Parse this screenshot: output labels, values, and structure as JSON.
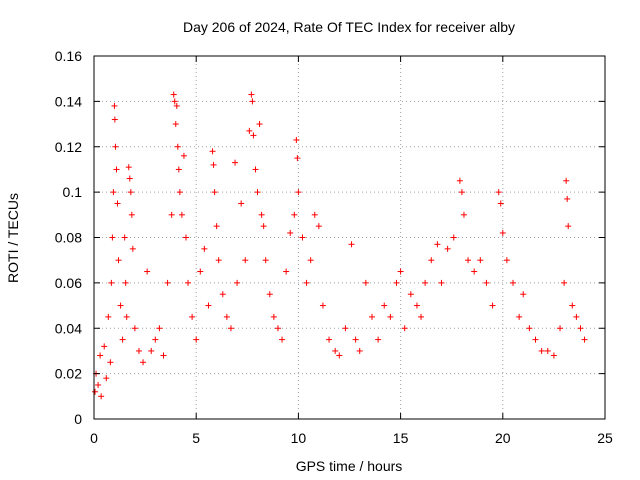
{
  "chart_data": {
    "type": "scatter",
    "title": "Day 206 of 2024, Rate Of TEC Index for receiver alby",
    "xlabel": "GPS time / hours",
    "ylabel": "ROTI / TECUs",
    "xlim": [
      0,
      25
    ],
    "ylim": [
      0,
      0.16
    ],
    "x_ticks": [
      0,
      5,
      10,
      15,
      20,
      25
    ],
    "y_ticks": [
      0,
      0.02,
      0.04,
      0.06,
      0.08,
      0.1,
      0.12,
      0.14,
      0.16
    ],
    "x_tick_labels": [
      "0",
      "5",
      "10",
      "15",
      "20",
      "25"
    ],
    "y_tick_labels": [
      "0",
      "0.02",
      "0.04",
      "0.06",
      "0.08",
      "0.1",
      "0.12",
      "0.14",
      "0.16"
    ],
    "grid": true,
    "marker": "plus",
    "colors": {
      "points": "#ff0000",
      "grid": "#a0a0a0",
      "frame": "#000000"
    },
    "series": [
      {
        "points": [
          [
            0.05,
            0.012
          ],
          [
            0.1,
            0.02
          ],
          [
            0.2,
            0.015
          ],
          [
            0.3,
            0.028
          ],
          [
            0.35,
            0.01
          ],
          [
            0.5,
            0.032
          ],
          [
            0.6,
            0.018
          ],
          [
            0.7,
            0.045
          ],
          [
            0.8,
            0.025
          ],
          [
            0.85,
            0.06
          ],
          [
            0.9,
            0.08
          ],
          [
            0.95,
            0.1
          ],
          [
            1.0,
            0.138
          ],
          [
            1.02,
            0.132
          ],
          [
            1.05,
            0.12
          ],
          [
            1.1,
            0.11
          ],
          [
            1.15,
            0.095
          ],
          [
            1.2,
            0.07
          ],
          [
            1.3,
            0.05
          ],
          [
            1.4,
            0.035
          ],
          [
            1.5,
            0.08
          ],
          [
            1.55,
            0.06
          ],
          [
            1.6,
            0.045
          ],
          [
            1.7,
            0.111
          ],
          [
            1.75,
            0.106
          ],
          [
            1.8,
            0.1
          ],
          [
            1.85,
            0.09
          ],
          [
            1.9,
            0.075
          ],
          [
            2.0,
            0.04
          ],
          [
            2.2,
            0.03
          ],
          [
            2.4,
            0.025
          ],
          [
            2.6,
            0.065
          ],
          [
            2.8,
            0.03
          ],
          [
            3.0,
            0.035
          ],
          [
            3.2,
            0.04
          ],
          [
            3.4,
            0.028
          ],
          [
            3.6,
            0.06
          ],
          [
            3.8,
            0.09
          ],
          [
            3.9,
            0.143
          ],
          [
            3.95,
            0.14
          ],
          [
            4.0,
            0.13
          ],
          [
            4.05,
            0.138
          ],
          [
            4.1,
            0.12
          ],
          [
            4.15,
            0.11
          ],
          [
            4.2,
            0.1
          ],
          [
            4.3,
            0.09
          ],
          [
            4.4,
            0.116
          ],
          [
            4.5,
            0.08
          ],
          [
            4.6,
            0.06
          ],
          [
            4.8,
            0.045
          ],
          [
            5.0,
            0.035
          ],
          [
            5.2,
            0.065
          ],
          [
            5.4,
            0.075
          ],
          [
            5.6,
            0.05
          ],
          [
            5.8,
            0.118
          ],
          [
            5.85,
            0.112
          ],
          [
            5.9,
            0.1
          ],
          [
            6.0,
            0.085
          ],
          [
            6.1,
            0.07
          ],
          [
            6.3,
            0.055
          ],
          [
            6.5,
            0.045
          ],
          [
            6.7,
            0.04
          ],
          [
            6.9,
            0.113
          ],
          [
            7.0,
            0.06
          ],
          [
            7.2,
            0.095
          ],
          [
            7.4,
            0.07
          ],
          [
            7.6,
            0.127
          ],
          [
            7.7,
            0.143
          ],
          [
            7.75,
            0.14
          ],
          [
            7.8,
            0.125
          ],
          [
            7.9,
            0.11
          ],
          [
            8.0,
            0.1
          ],
          [
            8.1,
            0.13
          ],
          [
            8.2,
            0.09
          ],
          [
            8.3,
            0.085
          ],
          [
            8.4,
            0.07
          ],
          [
            8.6,
            0.055
          ],
          [
            8.8,
            0.045
          ],
          [
            9.0,
            0.04
          ],
          [
            9.2,
            0.035
          ],
          [
            9.4,
            0.065
          ],
          [
            9.6,
            0.082
          ],
          [
            9.8,
            0.09
          ],
          [
            9.9,
            0.123
          ],
          [
            9.95,
            0.115
          ],
          [
            10.0,
            0.1
          ],
          [
            10.2,
            0.08
          ],
          [
            10.4,
            0.06
          ],
          [
            10.6,
            0.07
          ],
          [
            10.8,
            0.09
          ],
          [
            11.0,
            0.085
          ],
          [
            11.2,
            0.05
          ],
          [
            11.5,
            0.035
          ],
          [
            11.8,
            0.03
          ],
          [
            12.0,
            0.028
          ],
          [
            12.3,
            0.04
          ],
          [
            12.6,
            0.077
          ],
          [
            12.8,
            0.035
          ],
          [
            13.0,
            0.03
          ],
          [
            13.3,
            0.06
          ],
          [
            13.6,
            0.045
          ],
          [
            13.9,
            0.035
          ],
          [
            14.2,
            0.05
          ],
          [
            14.5,
            0.045
          ],
          [
            14.8,
            0.06
          ],
          [
            15.0,
            0.065
          ],
          [
            15.2,
            0.04
          ],
          [
            15.5,
            0.055
          ],
          [
            15.8,
            0.05
          ],
          [
            16.0,
            0.045
          ],
          [
            16.2,
            0.06
          ],
          [
            16.5,
            0.07
          ],
          [
            16.8,
            0.077
          ],
          [
            17.0,
            0.06
          ],
          [
            17.3,
            0.075
          ],
          [
            17.6,
            0.08
          ],
          [
            17.9,
            0.105
          ],
          [
            18.0,
            0.1
          ],
          [
            18.1,
            0.09
          ],
          [
            18.3,
            0.07
          ],
          [
            18.6,
            0.065
          ],
          [
            18.9,
            0.07
          ],
          [
            19.2,
            0.06
          ],
          [
            19.5,
            0.05
          ],
          [
            19.8,
            0.1
          ],
          [
            19.9,
            0.095
          ],
          [
            20.0,
            0.082
          ],
          [
            20.2,
            0.07
          ],
          [
            20.5,
            0.06
          ],
          [
            20.8,
            0.045
          ],
          [
            21.0,
            0.055
          ],
          [
            21.3,
            0.04
          ],
          [
            21.6,
            0.035
          ],
          [
            21.9,
            0.03
          ],
          [
            22.2,
            0.03
          ],
          [
            22.5,
            0.028
          ],
          [
            22.8,
            0.04
          ],
          [
            23.0,
            0.06
          ],
          [
            23.1,
            0.105
          ],
          [
            23.15,
            0.097
          ],
          [
            23.2,
            0.085
          ],
          [
            23.4,
            0.05
          ],
          [
            23.6,
            0.045
          ],
          [
            23.8,
            0.04
          ],
          [
            24.0,
            0.035
          ]
        ]
      }
    ]
  }
}
